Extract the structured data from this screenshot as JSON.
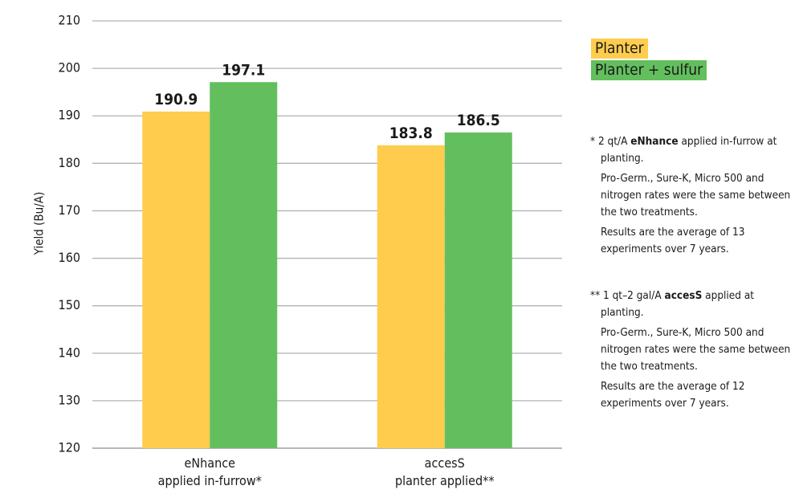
{
  "colors": {
    "planter": "#FFCC4D",
    "planter_sulfur": "#63BF5E",
    "grid": "#b3b3b3"
  },
  "chart_data": {
    "type": "bar",
    "title": "",
    "ylabel": "Yield (Bu/A)",
    "xlabel": "",
    "ylim": [
      120,
      210
    ],
    "yticks": [
      120,
      130,
      140,
      150,
      160,
      170,
      180,
      190,
      200,
      210
    ],
    "grid": true,
    "legend_position": "top-right",
    "categories": [
      [
        "eNhance",
        "applied in-furrow*"
      ],
      [
        "accesS",
        "planter applied**"
      ]
    ],
    "series": [
      {
        "name": "Planter",
        "values": [
          190.9,
          183.8
        ],
        "labels": [
          "190.9",
          "183.8"
        ]
      },
      {
        "name": "Planter + sulfur",
        "values": [
          197.1,
          186.5
        ],
        "labels": [
          "197.1",
          "186.5"
        ]
      }
    ]
  },
  "notes": [
    {
      "marker": "*",
      "pre": "2 qt/A ",
      "bold": "eNhance",
      "post": " applied in-furrow at planting.",
      "paras": [
        "Pro-Germ., Sure-K, Micro 500 and nitrogen rates were the same between the two treatments.",
        "Results are the average of 13 experiments over 7 years."
      ]
    },
    {
      "marker": "**",
      "pre": "1 qt–2 gal/A ",
      "bold": "accesS",
      "post": " applied at planting.",
      "paras": [
        "Pro-Germ., Sure-K, Micro 500 and nitrogen rates were the same between the two treatments.",
        "Results are the average of 12 experiments over 7 years."
      ]
    }
  ]
}
